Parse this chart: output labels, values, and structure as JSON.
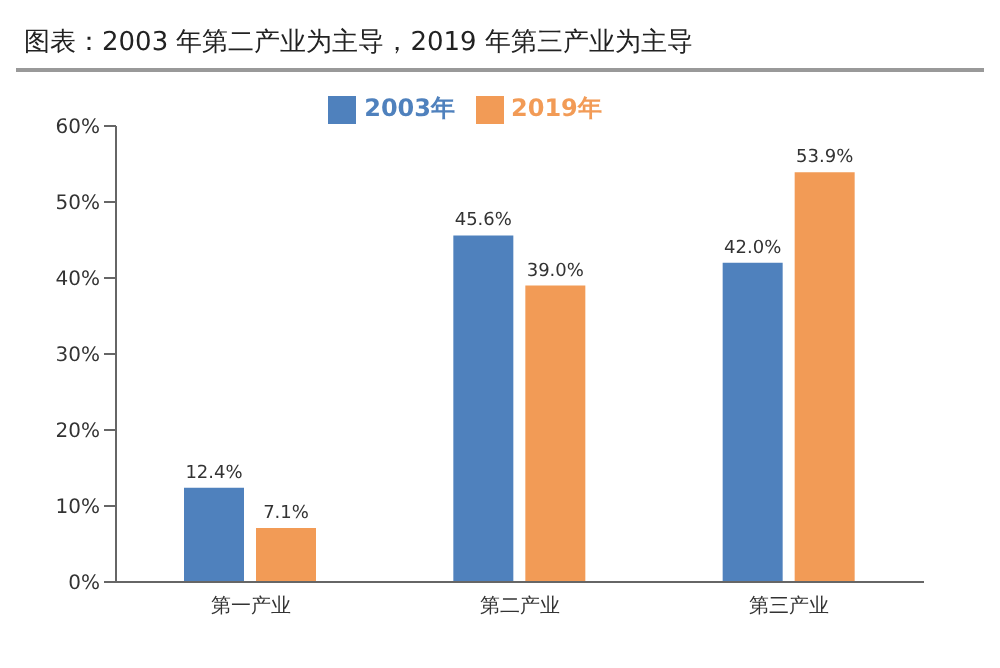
{
  "chart_data": {
    "type": "bar",
    "title": "图表：2003 年第二产业为主导，2019 年第三产业为主导",
    "categories": [
      "第一产业",
      "第二产业",
      "第三产业"
    ],
    "series": [
      {
        "name": "2003年",
        "color": "#4f81bd",
        "values": [
          12.4,
          45.6,
          42.0
        ],
        "value_labels": [
          "12.4%",
          "45.6%",
          "42.0%"
        ]
      },
      {
        "name": "2019年",
        "color": "#f29b56",
        "values": [
          7.1,
          39.0,
          53.9
        ],
        "value_labels": [
          "7.1%",
          "39.0%",
          "53.9%"
        ]
      }
    ],
    "ylim": [
      0,
      60
    ],
    "yticks": [
      {
        "value": 0,
        "label": "0%"
      },
      {
        "value": 10,
        "label": "10%"
      },
      {
        "value": 20,
        "label": "20%"
      },
      {
        "value": 30,
        "label": "30%"
      },
      {
        "value": 40,
        "label": "40%"
      },
      {
        "value": 50,
        "label": "50%"
      },
      {
        "value": 60,
        "label": "60%"
      }
    ],
    "grid": false,
    "legend": "top"
  }
}
